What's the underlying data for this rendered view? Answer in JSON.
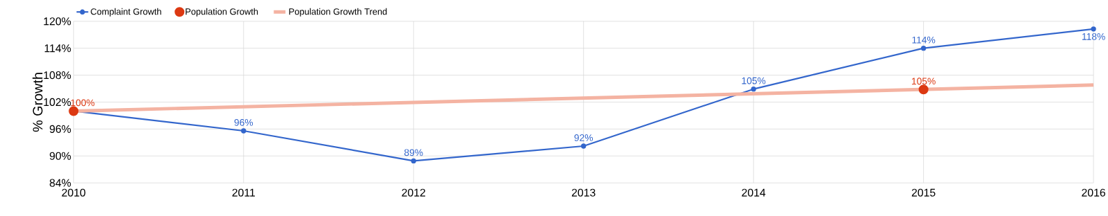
{
  "chart_data": {
    "type": "line",
    "ylabel": "% Growth",
    "x": [
      2010,
      2011,
      2012,
      2013,
      2014,
      2015,
      2016
    ],
    "series": [
      {
        "name": "Complaint Growth",
        "color": "#3366cc",
        "marker": "circle",
        "values": [
          100,
          95.6,
          88.9,
          92.2,
          104.9,
          114,
          118.3
        ],
        "value_labels": [
          null,
          "96%",
          "89%",
          "92%",
          "105%",
          "114%",
          "118%"
        ]
      },
      {
        "name": "Population Growth",
        "type": "scatter",
        "color": "#dc3912",
        "marker": "circle",
        "values": [
          100,
          null,
          null,
          null,
          null,
          104.8,
          null
        ],
        "value_labels": [
          "100%",
          null,
          null,
          null,
          null,
          "105%",
          null
        ]
      },
      {
        "name": "Population Growth Trend",
        "type": "line",
        "color": "#f4b3a2",
        "x": [
          2010,
          2016
        ],
        "values": [
          100,
          105.8
        ]
      }
    ],
    "xlim": [
      2010,
      2016
    ],
    "xticks": [
      2010,
      2011,
      2012,
      2013,
      2014,
      2015,
      2016
    ],
    "ylim": [
      84,
      120
    ],
    "yticks": [
      {
        "value": 84,
        "label": "84%"
      },
      {
        "value": 90,
        "label": "90%"
      },
      {
        "value": 96,
        "label": "96%"
      },
      {
        "value": 102,
        "label": "102%"
      },
      {
        "value": 108,
        "label": "108%"
      },
      {
        "value": 114,
        "label": "114%"
      },
      {
        "value": 120,
        "label": "120%"
      }
    ],
    "grid": true,
    "legend": "top left"
  }
}
